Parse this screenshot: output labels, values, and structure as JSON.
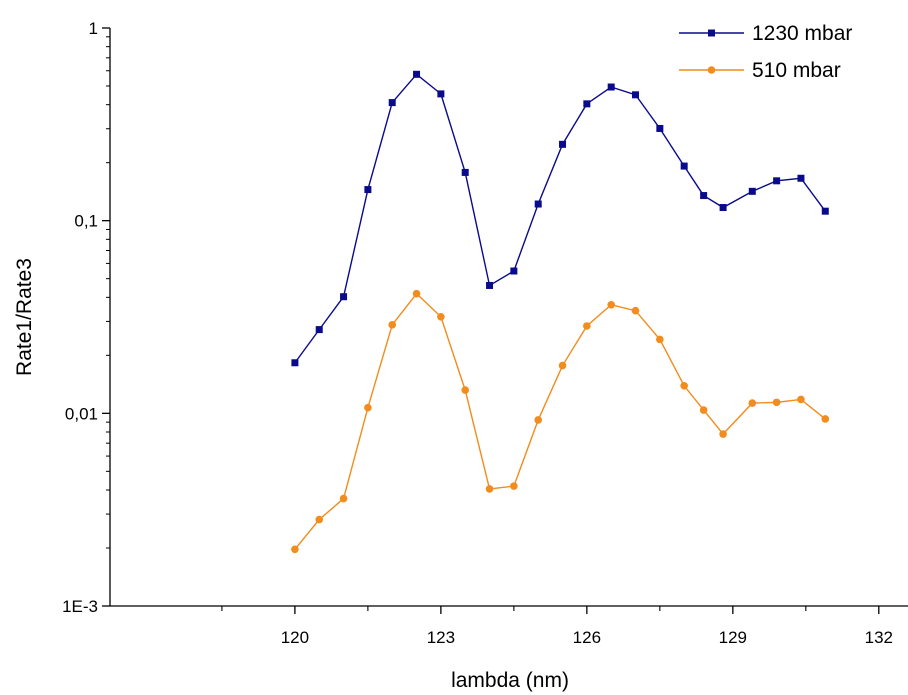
{
  "chart_data": {
    "type": "line",
    "xlabel": "lambda (nm)",
    "ylabel": "Rate1/Rate3",
    "xlim": [
      116.2,
      132.6
    ],
    "ylim": [
      0.001,
      1
    ],
    "yscale": "log",
    "xticks": [
      120,
      123,
      126,
      129,
      132
    ],
    "xtick_labels": [
      "120",
      "123",
      "126",
      "129",
      "132"
    ],
    "yticks": [
      0.001,
      0.01,
      0.1,
      1
    ],
    "ytick_labels": [
      "1E-3",
      "0,01",
      "0,1",
      "1"
    ],
    "grid": false,
    "legend_position": "top-right",
    "x": [
      120,
      120.5,
      121,
      121.5,
      122,
      122.5,
      123,
      123.5,
      124,
      124.5,
      125,
      125.5,
      126,
      126.5,
      127,
      127.5,
      128,
      128.4,
      128.8,
      129.4,
      129.9,
      130.4,
      130.9
    ],
    "series": [
      {
        "name": "1230 mbar",
        "color": "#0a0a8c",
        "marker": "square",
        "values": [
          0.0183,
          0.0272,
          0.0403,
          0.145,
          0.41,
          0.575,
          0.455,
          0.178,
          0.0461,
          0.0548,
          0.122,
          0.249,
          0.404,
          0.494,
          0.45,
          0.301,
          0.192,
          0.135,
          0.117,
          0.142,
          0.161,
          0.166,
          0.112
        ]
      },
      {
        "name": "510 mbar",
        "color": "#f28c1c",
        "marker": "circle",
        "values": [
          0.00197,
          0.00281,
          0.00361,
          0.0107,
          0.0288,
          0.0418,
          0.0317,
          0.0132,
          0.00405,
          0.00419,
          0.00924,
          0.0177,
          0.0284,
          0.0366,
          0.0341,
          0.0242,
          0.0139,
          0.0104,
          0.00781,
          0.0113,
          0.0114,
          0.0118,
          0.00935
        ]
      }
    ]
  }
}
